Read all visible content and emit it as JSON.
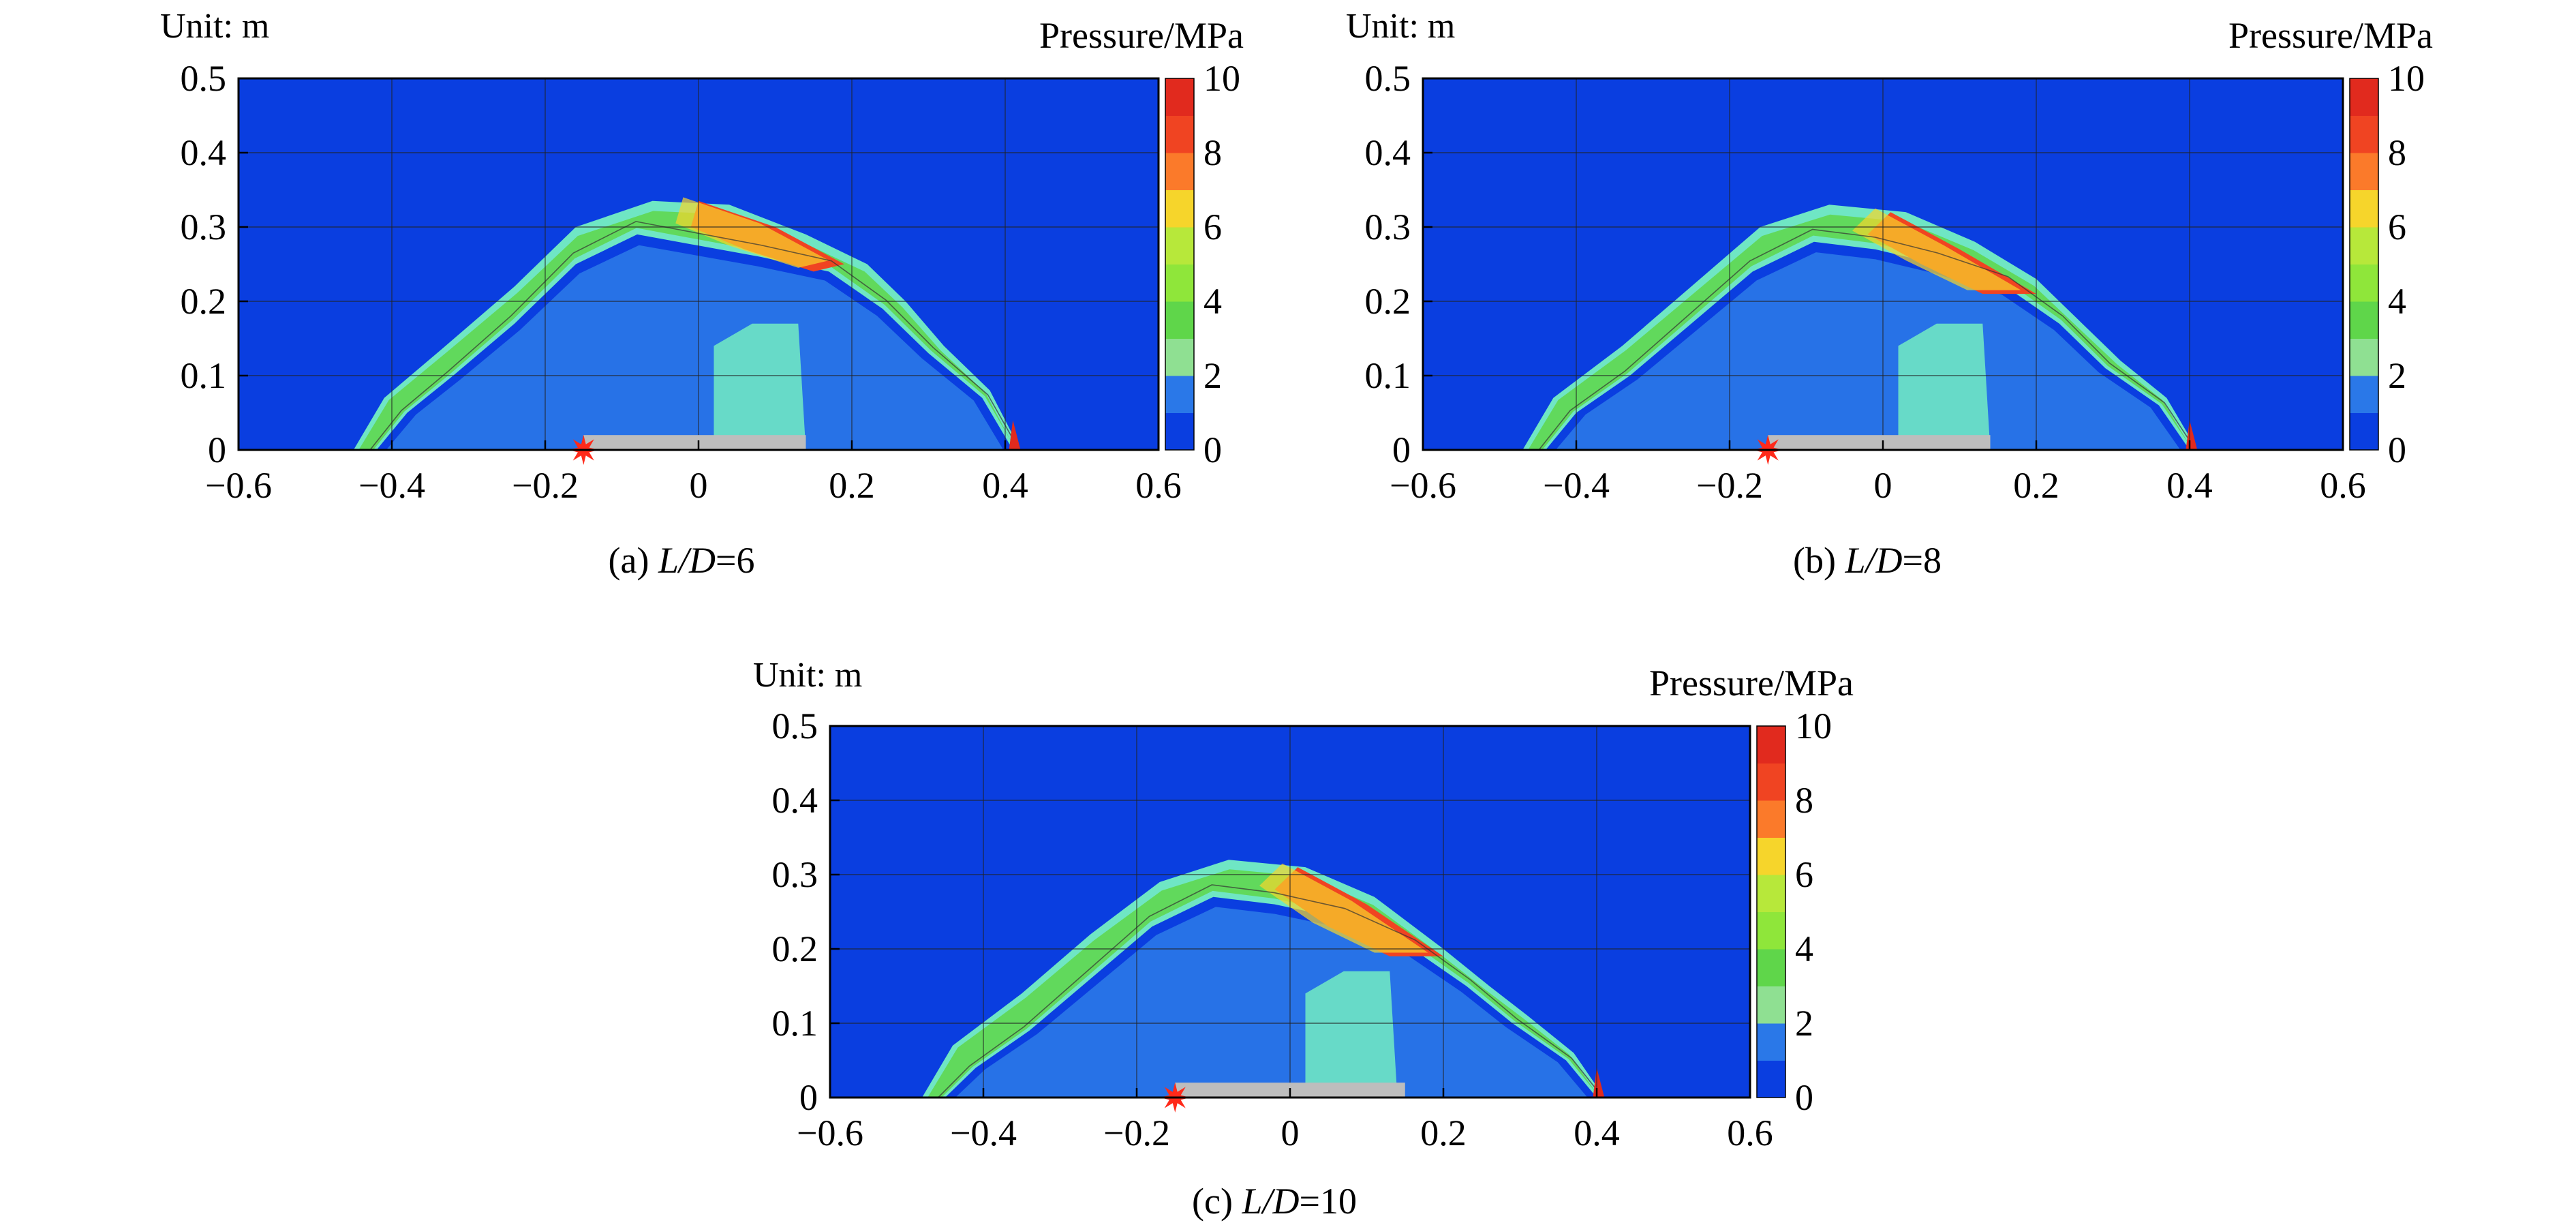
{
  "figure": {
    "panels": [
      {
        "id": "a",
        "caption_prefix": "(a) ",
        "caption_var": "L/D",
        "caption_eq": "=6"
      },
      {
        "id": "b",
        "caption_prefix": "(b) ",
        "caption_var": "L/D",
        "caption_eq": "=8"
      },
      {
        "id": "c",
        "caption_prefix": "(c) ",
        "caption_var": "L/D",
        "caption_eq": "=10"
      }
    ],
    "unit_label": "Unit: m",
    "colorbar_title": "Pressure/MPa",
    "colorbar_ticks": [
      "0",
      "2",
      "4",
      "6",
      "8",
      "10"
    ],
    "x_ticks": [
      "−0.6",
      "−0.4",
      "−0.2",
      "0",
      "0.2",
      "0.4",
      "0.6"
    ],
    "y_ticks": [
      "0",
      "0.1",
      "0.2",
      "0.3",
      "0.4",
      "0.5"
    ]
  },
  "chart_data": [
    {
      "type": "heatmap",
      "panel": "a",
      "xlim": [
        -0.6,
        0.6
      ],
      "ylim": [
        0,
        0.5
      ],
      "grid": true,
      "colorbar_range": [
        0,
        10
      ],
      "colorbar_levels": 10,
      "charge_x": -0.15,
      "charge_length": [
        -0.15,
        0.14
      ],
      "shock_outer": [
        [
          -0.45,
          0.0
        ],
        [
          -0.41,
          0.07
        ],
        [
          -0.33,
          0.14
        ],
        [
          -0.24,
          0.22
        ],
        [
          -0.16,
          0.3
        ],
        [
          -0.06,
          0.335
        ],
        [
          0.04,
          0.33
        ],
        [
          0.14,
          0.29
        ],
        [
          0.22,
          0.25
        ],
        [
          0.27,
          0.2
        ],
        [
          0.32,
          0.14
        ],
        [
          0.38,
          0.08
        ],
        [
          0.42,
          0.0
        ]
      ],
      "shock_inner": [
        [
          0.41,
          0.0
        ],
        [
          0.37,
          0.07
        ],
        [
          0.3,
          0.13
        ],
        [
          0.24,
          0.19
        ],
        [
          0.17,
          0.24
        ],
        [
          0.08,
          0.26
        ],
        [
          0.0,
          0.275
        ],
        [
          -0.08,
          0.29
        ],
        [
          -0.16,
          0.25
        ],
        [
          -0.24,
          0.17
        ],
        [
          -0.32,
          0.1
        ],
        [
          -0.38,
          0.05
        ],
        [
          -0.42,
          0.0
        ]
      ],
      "hot_zone": [
        [
          0.0,
          0.335
        ],
        [
          0.1,
          0.3
        ],
        [
          0.19,
          0.25
        ],
        [
          0.15,
          0.24
        ],
        [
          0.06,
          0.27
        ],
        [
          -0.01,
          0.3
        ]
      ]
    },
    {
      "type": "heatmap",
      "panel": "b",
      "xlim": [
        -0.6,
        0.6
      ],
      "ylim": [
        0,
        0.5
      ],
      "grid": true,
      "colorbar_range": [
        0,
        10
      ],
      "colorbar_levels": 10,
      "charge_x": -0.15,
      "charge_length": [
        -0.15,
        0.14
      ],
      "shock_outer": [
        [
          -0.47,
          0.0
        ],
        [
          -0.43,
          0.07
        ],
        [
          -0.34,
          0.14
        ],
        [
          -0.25,
          0.22
        ],
        [
          -0.16,
          0.3
        ],
        [
          -0.07,
          0.33
        ],
        [
          0.03,
          0.32
        ],
        [
          0.12,
          0.28
        ],
        [
          0.2,
          0.23
        ],
        [
          0.26,
          0.17
        ],
        [
          0.31,
          0.12
        ],
        [
          0.37,
          0.07
        ],
        [
          0.41,
          0.0
        ]
      ],
      "shock_inner": [
        [
          0.4,
          0.0
        ],
        [
          0.36,
          0.06
        ],
        [
          0.29,
          0.11
        ],
        [
          0.23,
          0.17
        ],
        [
          0.16,
          0.22
        ],
        [
          0.07,
          0.25
        ],
        [
          -0.01,
          0.27
        ],
        [
          -0.09,
          0.28
        ],
        [
          -0.17,
          0.24
        ],
        [
          -0.25,
          0.17
        ],
        [
          -0.33,
          0.1
        ],
        [
          -0.4,
          0.05
        ],
        [
          -0.44,
          0.0
        ]
      ],
      "hot_zone": [
        [
          0.01,
          0.32
        ],
        [
          0.1,
          0.27
        ],
        [
          0.2,
          0.21
        ],
        [
          0.13,
          0.21
        ],
        [
          0.05,
          0.25
        ],
        [
          -0.02,
          0.29
        ]
      ]
    },
    {
      "type": "heatmap",
      "panel": "c",
      "xlim": [
        -0.6,
        0.6
      ],
      "ylim": [
        0,
        0.5
      ],
      "grid": true,
      "colorbar_range": [
        0,
        10
      ],
      "colorbar_levels": 10,
      "charge_x": -0.15,
      "charge_length": [
        -0.15,
        0.15
      ],
      "shock_outer": [
        [
          -0.48,
          0.0
        ],
        [
          -0.44,
          0.07
        ],
        [
          -0.35,
          0.14
        ],
        [
          -0.26,
          0.22
        ],
        [
          -0.17,
          0.29
        ],
        [
          -0.08,
          0.32
        ],
        [
          0.02,
          0.31
        ],
        [
          0.11,
          0.27
        ],
        [
          0.2,
          0.2
        ],
        [
          0.26,
          0.15
        ],
        [
          0.31,
          0.11
        ],
        [
          0.37,
          0.06
        ],
        [
          0.41,
          0.0
        ]
      ],
      "shock_inner": [
        [
          0.4,
          0.0
        ],
        [
          0.36,
          0.05
        ],
        [
          0.29,
          0.1
        ],
        [
          0.23,
          0.15
        ],
        [
          0.16,
          0.2
        ],
        [
          0.07,
          0.24
        ],
        [
          -0.02,
          0.26
        ],
        [
          -0.1,
          0.27
        ],
        [
          -0.18,
          0.23
        ],
        [
          -0.26,
          0.16
        ],
        [
          -0.34,
          0.09
        ],
        [
          -0.41,
          0.04
        ],
        [
          -0.45,
          0.0
        ]
      ],
      "hot_zone": [
        [
          0.01,
          0.31
        ],
        [
          0.1,
          0.26
        ],
        [
          0.2,
          0.19
        ],
        [
          0.13,
          0.19
        ],
        [
          0.05,
          0.23
        ],
        [
          -0.02,
          0.28
        ]
      ]
    }
  ],
  "colors": {
    "background_field": "#0a3ee0",
    "levels": [
      "#0a3ee0",
      "#2a78e8",
      "#6fe6c4",
      "#8fe092",
      "#5fd64a",
      "#8fe63a",
      "#b7e83a",
      "#f6d52b",
      "#fb7a2a",
      "#f04422",
      "#e12a1e"
    ],
    "charge": "#bdbdbd",
    "detonation": "#ff2a1a"
  }
}
